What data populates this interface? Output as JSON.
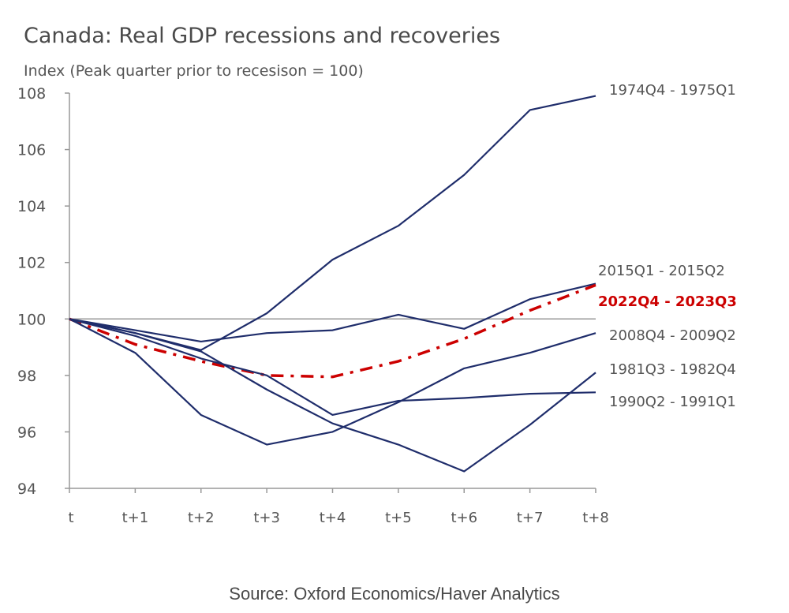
{
  "chart_data": {
    "type": "line",
    "title": "Canada: Real GDP recessions and recoveries",
    "ylabel": "Index (Peak quarter prior to recesison = 100)",
    "source": "Source: Oxford Economics/Haver Analytics",
    "categories": [
      "t",
      "t+1",
      "t+2",
      "t+3",
      "t+4",
      "t+5",
      "t+6",
      "t+7",
      "t+8"
    ],
    "ylim": [
      94,
      108
    ],
    "yticks": [
      94,
      96,
      98,
      100,
      102,
      104,
      106,
      108
    ],
    "reference_line": 100,
    "legend_placement": "right (end-of-line labels)",
    "series": [
      {
        "name": "1974Q4 - 1975Q1",
        "color": "#1f2d6b",
        "style": "solid",
        "values": [
          100,
          99.5,
          98.9,
          100.2,
          102.1,
          103.3,
          105.1,
          107.4,
          107.9
        ]
      },
      {
        "name": "2015Q1 - 2015Q2",
        "color": "#1f2d6b",
        "style": "solid",
        "values": [
          100,
          99.6,
          99.2,
          99.5,
          99.6,
          100.15,
          99.65,
          100.7,
          101.25
        ]
      },
      {
        "name": "2022Q4 - 2023Q3",
        "color": "#cc0000",
        "style": "dash-dot",
        "values": [
          100,
          99.1,
          98.5,
          98.0,
          97.95,
          98.5,
          99.3,
          100.3,
          101.2
        ]
      },
      {
        "name": "2008Q4 - 2009Q2",
        "color": "#1f2d6b",
        "style": "solid",
        "values": [
          100,
          98.8,
          96.6,
          95.55,
          96.0,
          97.05,
          98.25,
          98.8,
          99.5
        ]
      },
      {
        "name": "1981Q3 - 1982Q4",
        "color": "#1f2d6b",
        "style": "solid",
        "values": [
          100,
          99.5,
          98.85,
          97.5,
          96.3,
          95.55,
          94.6,
          96.25,
          98.1
        ]
      },
      {
        "name": "1990Q2 - 1991Q1",
        "color": "#1f2d6b",
        "style": "solid",
        "values": [
          100,
          99.4,
          98.6,
          98.0,
          96.6,
          97.1,
          97.2,
          97.35,
          97.4
        ]
      }
    ]
  }
}
